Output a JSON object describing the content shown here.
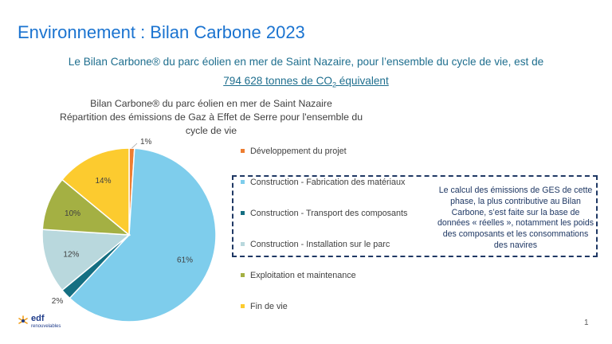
{
  "slide": {
    "title": "Environnement : Bilan Carbone 2023",
    "subtitle_line1": "Le Bilan Carbone® du parc éolien en mer de Saint Nazaire, pour l’ensemble du cycle de vie, est de",
    "subtitle_value_prefix": "794 628 tonnes de CO",
    "subtitle_value_sub": "2",
    "subtitle_value_suffix": " équivalent",
    "note": "Le calcul des émissions de GES de cette phase, la plus contributive au Bilan Carbone, s’est faite sur la base de données « réelles », notamment les poids des composants et les consommations des navires",
    "page_number": "1",
    "logo_text": "edf",
    "logo_sub": "renouvelables"
  },
  "chart_data": {
    "type": "pie",
    "title": "Bilan Carbone® du parc éolien en mer de Saint Nazaire Répartition des émissions de Gaz à Effet de Serre pour l'ensemble du cycle de vie",
    "title_lines": [
      "Bilan Carbone® du parc éolien en mer de Saint Nazaire",
      "Répartition des émissions de Gaz à Effet de Serre pour l'ensemble du",
      "cycle de vie"
    ],
    "start_angle_deg": 0,
    "direction": "clockwise",
    "legend_position": "right",
    "slices": [
      {
        "name": "Développement du projet",
        "value": 1,
        "label": "1%",
        "color": "#ed7d31"
      },
      {
        "name": "Construction - Fabrication des matériaux",
        "value": 61,
        "label": "61%",
        "color": "#7ecdec"
      },
      {
        "name": "Construction - Transport des composants",
        "value": 2,
        "label": "2%",
        "color": "#156f82"
      },
      {
        "name": "Construction - Installation sur le parc",
        "value": 12,
        "label": "12%",
        "color": "#b9d8dd"
      },
      {
        "name": "Exploitation et maintenance",
        "value": 10,
        "label": "10%",
        "color": "#a4b043"
      },
      {
        "name": "Fin de vie",
        "value": 14,
        "label": "14%",
        "color": "#fccb2f"
      }
    ]
  }
}
